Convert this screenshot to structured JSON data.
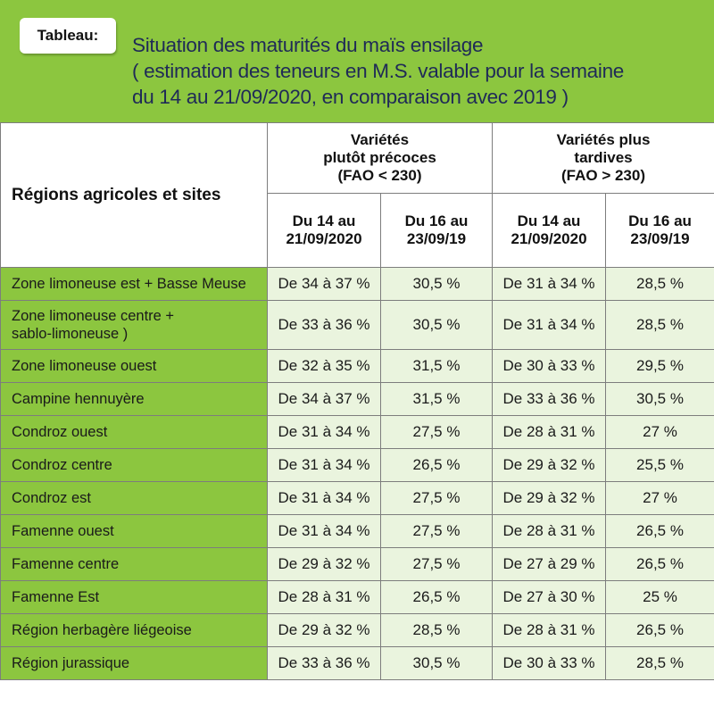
{
  "header": {
    "tag": "Tableau:",
    "title_lines": [
      "Situation des maturités du maïs ensilage",
      "( estimation des teneurs en M.S. valable pour la semaine",
      "du 14 au 21/09/2020, en comparaison avec 2019 )"
    ]
  },
  "table": {
    "region_header": "Régions agricoles et sites",
    "groups": [
      {
        "lines": [
          "Variétés",
          "plutôt précoces",
          "(FAO < 230)"
        ]
      },
      {
        "lines": [
          "Variétés plus",
          "tardives",
          "(FAO > 230)"
        ]
      }
    ],
    "subheaders": [
      {
        "lines": [
          "Du 14 au",
          "21/09/2020"
        ]
      },
      {
        "lines": [
          "Du 16 au",
          "23/09/19"
        ]
      },
      {
        "lines": [
          "Du 14 au",
          "21/09/2020"
        ]
      },
      {
        "lines": [
          "Du 16 au",
          "23/09/19"
        ]
      }
    ],
    "rows": [
      {
        "region": "Zone limoneuse est + Basse Meuse",
        "values": [
          "De 34 à 37 %",
          "30,5 %",
          "De 31 à 34 %",
          "28,5 %"
        ]
      },
      {
        "region": "Zone limoneuse centre + sablo-limoneuse )",
        "region_lines": [
          "Zone limoneuse centre +",
          "sablo-limoneuse )"
        ],
        "values": [
          "De 33 à 36 %",
          "30,5 %",
          "De 31 à 34 %",
          "28,5 %"
        ]
      },
      {
        "region": "Zone limoneuse ouest",
        "values": [
          "De 32 à 35 %",
          "31,5 %",
          "De 30 à 33 %",
          "29,5 %"
        ]
      },
      {
        "region": "Campine hennuyère",
        "values": [
          "De 34 à 37 %",
          "31,5 %",
          "De 33 à 36 %",
          "30,5 %"
        ]
      },
      {
        "region": "Condroz ouest",
        "values": [
          "De 31 à 34 %",
          "27,5 %",
          "De 28 à 31 %",
          "27 %"
        ]
      },
      {
        "region": "Condroz centre",
        "values": [
          "De 31 à 34 %",
          "26,5 %",
          "De 29 à 32 %",
          "25,5 %"
        ]
      },
      {
        "region": "Condroz est",
        "values": [
          "De 31 à 34 %",
          "27,5 %",
          "De 29 à 32 %",
          "27 %"
        ]
      },
      {
        "region": "Famenne ouest",
        "values": [
          "De 31 à 34 %",
          "27,5 %",
          "De 28 à 31 %",
          "26,5 %"
        ]
      },
      {
        "region": "Famenne centre",
        "values": [
          "De 29 à 32 %",
          "27,5 %",
          "De 27 à 29 %",
          "26,5 %"
        ]
      },
      {
        "region": "Famenne Est",
        "values": [
          "De 28 à 31 %",
          "26,5 %",
          "De 27 à 30 %",
          "25 %"
        ]
      },
      {
        "region": "Région herbagère liégeoise",
        "values": [
          "De 29 à 32 %",
          "28,5 %",
          "De 28 à 31 %",
          "26,5 %"
        ]
      },
      {
        "region": "Région jurassique",
        "values": [
          "De 33 à 36 %",
          "30,5 %",
          "De 30 à 33 %",
          "28,5 %"
        ]
      }
    ]
  },
  "colors": {
    "header_green": "#8cc63f",
    "cell_tint": "#eaf4de",
    "title_navy": "#1f2a57"
  }
}
